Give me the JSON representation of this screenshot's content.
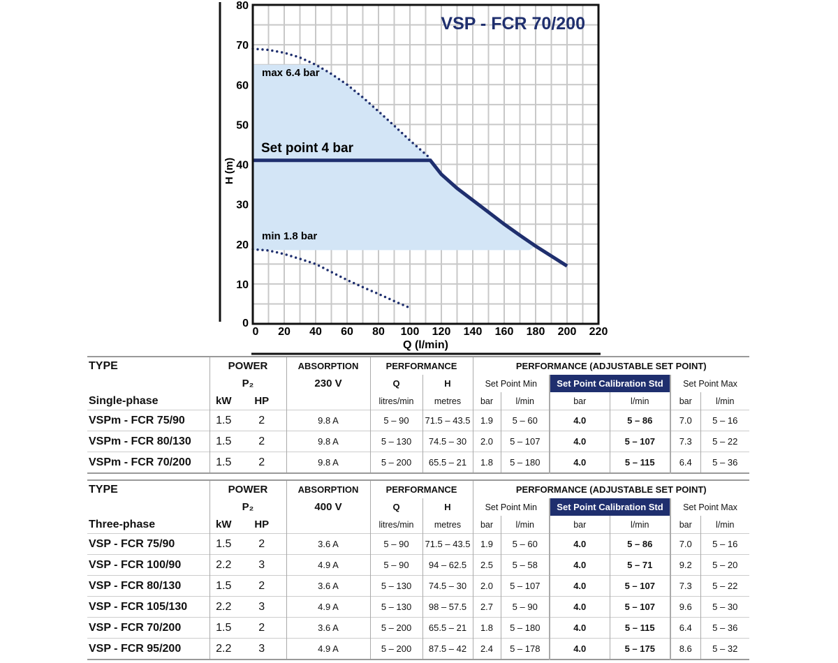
{
  "chart_data": {
    "type": "line",
    "title": "VSP - FCR 70/200",
    "xlabel": "Q (l/min)",
    "ylabel": "H (m)",
    "xlim": [
      0,
      220
    ],
    "ylim": [
      0,
      80
    ],
    "xticks": [
      "0",
      "20",
      "40",
      "60",
      "80",
      "100",
      "120",
      "140",
      "160",
      "180",
      "200",
      "220"
    ],
    "yticks": [
      "0",
      "10",
      "20",
      "30",
      "40",
      "50",
      "60",
      "70",
      "80"
    ],
    "grid": true,
    "series": [
      {
        "name": "max curve",
        "style": "dotted",
        "x": [
          0,
          10,
          20,
          30,
          40,
          50,
          60,
          70,
          80,
          90,
          100,
          113
        ],
        "y": [
          69,
          68.7,
          68,
          66.8,
          65,
          62.7,
          60,
          56.8,
          53.3,
          49.7,
          46,
          41.5
        ]
      },
      {
        "name": "min curve",
        "style": "dotted",
        "x": [
          0,
          10,
          20,
          30,
          40,
          50,
          60,
          70,
          80,
          90,
          100
        ],
        "y": [
          18.7,
          18.4,
          17.5,
          16.3,
          15,
          13,
          11,
          9.2,
          7.5,
          5.7,
          4
        ]
      },
      {
        "name": "Set point 4 bar",
        "style": "solid",
        "x": [
          0,
          113,
          120,
          130,
          140,
          150,
          160,
          170,
          180,
          190,
          200
        ],
        "y": [
          41,
          41,
          37.5,
          34,
          31,
          28,
          25,
          22.2,
          19.5,
          17,
          14.5
        ]
      }
    ],
    "band": {
      "ymin": 18.5,
      "ymax": 65
    },
    "annotations": [
      "max 6.4 bar",
      "Set point 4 bar",
      "min 1.8 bar"
    ]
  },
  "tables": [
    {
      "type": "TYPE",
      "power": "POWER",
      "p2": "P₂",
      "phase": "Single-phase",
      "kw": "kW",
      "hp": "HP",
      "absorption": "ABSORPTION",
      "voltage": "230 V",
      "performance": "PERFORMANCE",
      "q": "Q",
      "h": "H",
      "q_unit": "litres/min",
      "h_unit": "metres",
      "adj": "PERFORMANCE (ADJUSTABLE SET POINT)",
      "sp_min": "Set Point Min",
      "sp_std": "Set Point Calibration Std",
      "sp_max": "Set Point Max",
      "bar": "bar",
      "lmin": "l/min",
      "rows": [
        [
          "VSPm - FCR 75/90",
          "1.5",
          "2",
          "9.8 A",
          "5 – 90",
          "71.5 – 43.5",
          "1.9",
          "5 – 60",
          "4.0",
          "5 – 86",
          "7.0",
          "5 – 16"
        ],
        [
          "VSPm - FCR 80/130",
          "1.5",
          "2",
          "9.8 A",
          "5 – 130",
          "74.5 – 30",
          "2.0",
          "5 – 107",
          "4.0",
          "5 – 107",
          "7.3",
          "5 – 22"
        ],
        [
          "VSPm - FCR 70/200",
          "1.5",
          "2",
          "9.8 A",
          "5 – 200",
          "65.5 – 21",
          "1.8",
          "5 – 180",
          "4.0",
          "5 – 115",
          "6.4",
          "5 – 36"
        ]
      ]
    },
    {
      "type": "TYPE",
      "power": "POWER",
      "p2": "P₂",
      "phase": "Three-phase",
      "kw": "kW",
      "hp": "HP",
      "absorption": "ABSORPTION",
      "voltage": "400 V",
      "performance": "PERFORMANCE",
      "q": "Q",
      "h": "H",
      "q_unit": "litres/min",
      "h_unit": "metres",
      "adj": "PERFORMANCE (ADJUSTABLE SET POINT)",
      "sp_min": "Set Point Min",
      "sp_std": "Set Point Calibration Std",
      "sp_max": "Set Point Max",
      "bar": "bar",
      "lmin": "l/min",
      "rows": [
        [
          "VSP - FCR 75/90",
          "1.5",
          "2",
          "3.6 A",
          "5 – 90",
          "71.5 – 43.5",
          "1.9",
          "5 – 60",
          "4.0",
          "5 – 86",
          "7.0",
          "5 – 16"
        ],
        [
          "VSP - FCR 100/90",
          "2.2",
          "3",
          "4.9 A",
          "5 – 90",
          "94 – 62.5",
          "2.5",
          "5 – 58",
          "4.0",
          "5 – 71",
          "9.2",
          "5 – 20"
        ],
        [
          "VSP - FCR 80/130",
          "1.5",
          "2",
          "3.6 A",
          "5 – 130",
          "74.5 – 30",
          "2.0",
          "5 – 107",
          "4.0",
          "5 – 107",
          "7.3",
          "5 – 22"
        ],
        [
          "VSP - FCR 105/130",
          "2.2",
          "3",
          "4.9 A",
          "5 – 130",
          "98 – 57.5",
          "2.7",
          "5 – 90",
          "4.0",
          "5 – 107",
          "9.6",
          "5 – 30"
        ],
        [
          "VSP - FCR 70/200",
          "1.5",
          "2",
          "3.6 A",
          "5 – 200",
          "65.5 – 21",
          "1.8",
          "5 – 180",
          "4.0",
          "5 – 115",
          "6.4",
          "5 – 36"
        ],
        [
          "VSP - FCR 95/200",
          "2.2",
          "3",
          "4.9 A",
          "5 – 200",
          "87.5 – 42",
          "2.4",
          "5 – 178",
          "4.0",
          "5 – 175",
          "8.6",
          "5 – 32"
        ]
      ]
    }
  ],
  "colors": {
    "navy": "#1f2f6e",
    "band": "#d3e5f6",
    "grid": "#c8c8c8"
  }
}
